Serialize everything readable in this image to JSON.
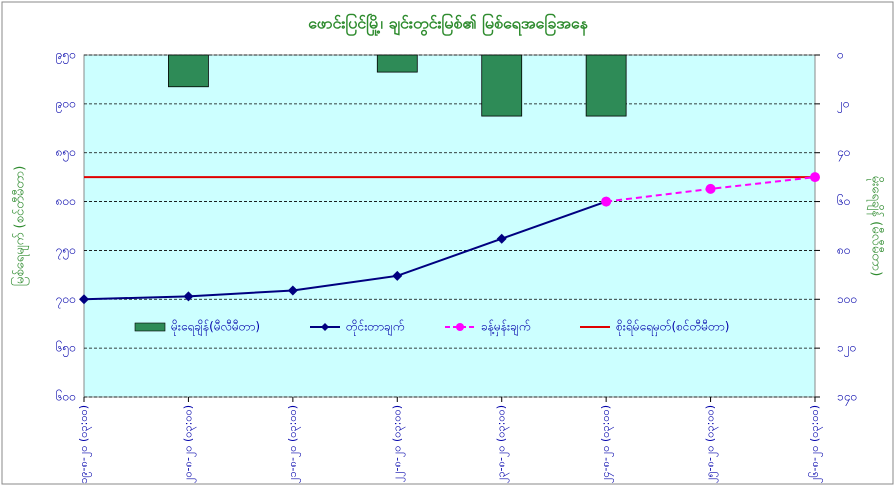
{
  "chart_data": {
    "type": "combo",
    "title": "ဖောင်းပြင်မြို့၊ ချင်းတွင်းမြစ်၏ မြစ်ရေအခြေအနေ",
    "y_label": "မြစ်ရေမျက် (စင်တီမီတာ)",
    "y2_label": "မိုးရေချိန် (မီလီမီတာ)",
    "categories": [
      "၁၉-၈-၂၀ (၀၃:၀၀)",
      "၂၀-၈-၂၀ (၀၃:၀၀)",
      "၂၁-၈-၂၀ (၀၃:၀၀)",
      "၂၂-၈-၂၀ (၀၃:၀၀)",
      "၂၃-၈-၂၀ (၀၃:၀၀)",
      "၂၄-၈-၂၀ (၀၃:၀၀)",
      "၂၅-၈-၂၀ (၀၃:၀၀)",
      "၂၆-၈-၂၀ (၀၃:၀၀)"
    ],
    "series": [
      {
        "name": "မိုးရေချိန်(မီလီမီတာ)",
        "type": "bar",
        "axis": "y2",
        "color": "#2e8b57",
        "values": [
          null,
          13,
          null,
          7,
          25,
          25,
          null,
          null
        ]
      },
      {
        "name": "တိုင်းတာချက်",
        "type": "line",
        "color": "#000080",
        "marker": "diamond",
        "values": [
          700,
          703,
          709,
          724,
          762,
          800,
          null,
          null
        ]
      },
      {
        "name": "ခန့်မှန်းချက်",
        "type": "line",
        "color": "#ff00ff",
        "marker": "circle",
        "dashed": true,
        "values": [
          null,
          null,
          null,
          null,
          null,
          800,
          813,
          825
        ]
      }
    ],
    "reference_line": {
      "name": "စိုးရိမ်ရေမှတ်(စင်တီမီတာ)",
      "value": 825,
      "color": "#e00000"
    },
    "ylim": [
      600,
      950
    ],
    "yticks": [
      {
        "value": 600,
        "label": "၆၀၀"
      },
      {
        "value": 650,
        "label": "၆၅၀"
      },
      {
        "value": 700,
        "label": "၇၀၀"
      },
      {
        "value": 750,
        "label": "၇၅၀"
      },
      {
        "value": 800,
        "label": "၈၀၀"
      },
      {
        "value": 850,
        "label": "၈၅၀"
      },
      {
        "value": 900,
        "label": "၉၀၀"
      },
      {
        "value": 950,
        "label": "၉၅၀"
      }
    ],
    "y2lim": [
      140,
      0
    ],
    "y2ticks": [
      {
        "value": 0,
        "label": "၀"
      },
      {
        "value": 20,
        "label": "၂၀"
      },
      {
        "value": 40,
        "label": "၄၀"
      },
      {
        "value": 60,
        "label": "၆၀"
      },
      {
        "value": 80,
        "label": "၈၀"
      },
      {
        "value": 100,
        "label": "၁၀၀"
      },
      {
        "value": 120,
        "label": "၁၂၀"
      },
      {
        "value": 140,
        "label": "၁၄၀"
      }
    ],
    "grid": true,
    "plot_background": "#ccffff"
  }
}
